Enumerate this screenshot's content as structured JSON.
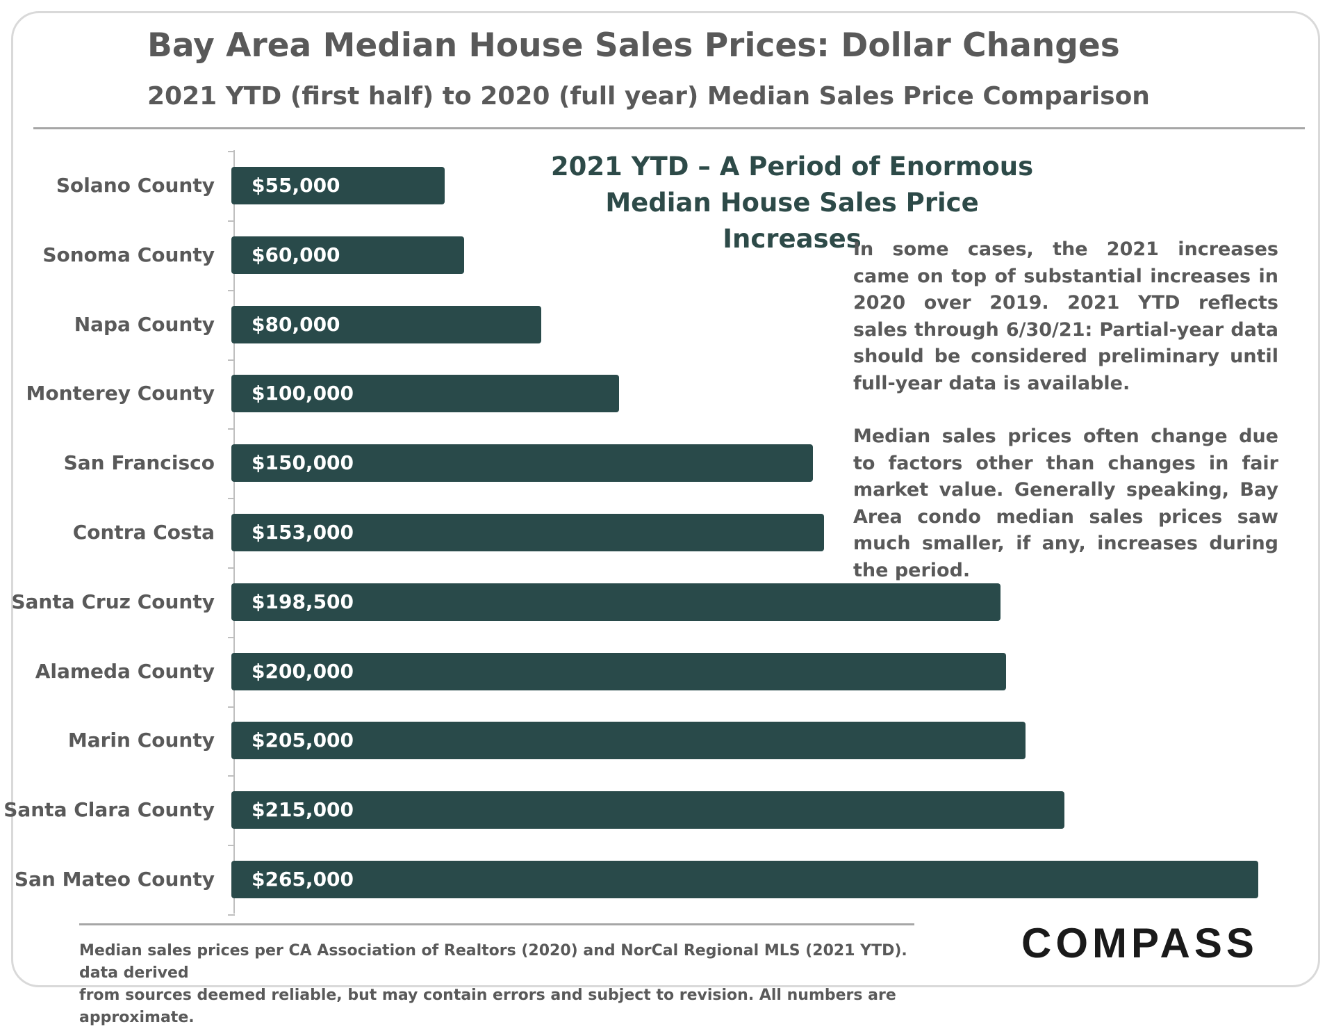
{
  "header": {
    "title": "Bay Area Median House Sales Prices: Dollar Changes",
    "subtitle": "2021 YTD (first half) to 2020 (full year) Median Sales Price Comparison"
  },
  "callout": {
    "heading_line1": "2021 YTD – A Period of Enormous",
    "heading_line2": "Median House Sales Price Increases",
    "paragraph1": "In some cases, the 2021 increases came on top of substantial increases in 2020 over 2019. 2021 YTD reflects sales through 6/30/21: Partial-year data should be considered preliminary until full-year data is available.",
    "paragraph2": "Median sales prices often change due to factors other than changes in fair market value. Generally speaking, Bay Area condo median sales prices saw much smaller, if any, increases during the period."
  },
  "footer": {
    "note_line1": "Median sales prices per CA Association of Realtors (2020) and NorCal Regional MLS (2021 YTD). data derived",
    "note_line2": "from sources deemed reliable, but may contain errors and subject to revision.  All numbers are approximate.",
    "logo": "COMPASS"
  },
  "chart_data": {
    "type": "bar",
    "orientation": "horizontal",
    "title": "Bay Area Median House Sales Prices: Dollar Changes",
    "subtitle": "2021 YTD (first half) to 2020 (full year) Median Sales Price Comparison",
    "xlabel": "",
    "ylabel": "",
    "xlim": [
      0,
      265000
    ],
    "categories": [
      "Solano County",
      "Sonoma County",
      "Napa County",
      "Monterey County",
      "San Francisco",
      "Contra Costa",
      "Santa Cruz County",
      "Alameda County",
      "Marin County",
      "Santa Clara County",
      "San Mateo County"
    ],
    "values": [
      55000,
      60000,
      80000,
      100000,
      150000,
      153000,
      198500,
      200000,
      205000,
      215000,
      265000
    ],
    "value_labels": [
      "$55,000",
      "$60,000",
      "$80,000",
      "$100,000",
      "$150,000",
      "$153,000",
      "$198,500",
      "$200,000",
      "$205,000",
      "$215,000",
      "$265,000"
    ],
    "bar_color": "#294a4a",
    "grid": false,
    "legend": "none"
  }
}
